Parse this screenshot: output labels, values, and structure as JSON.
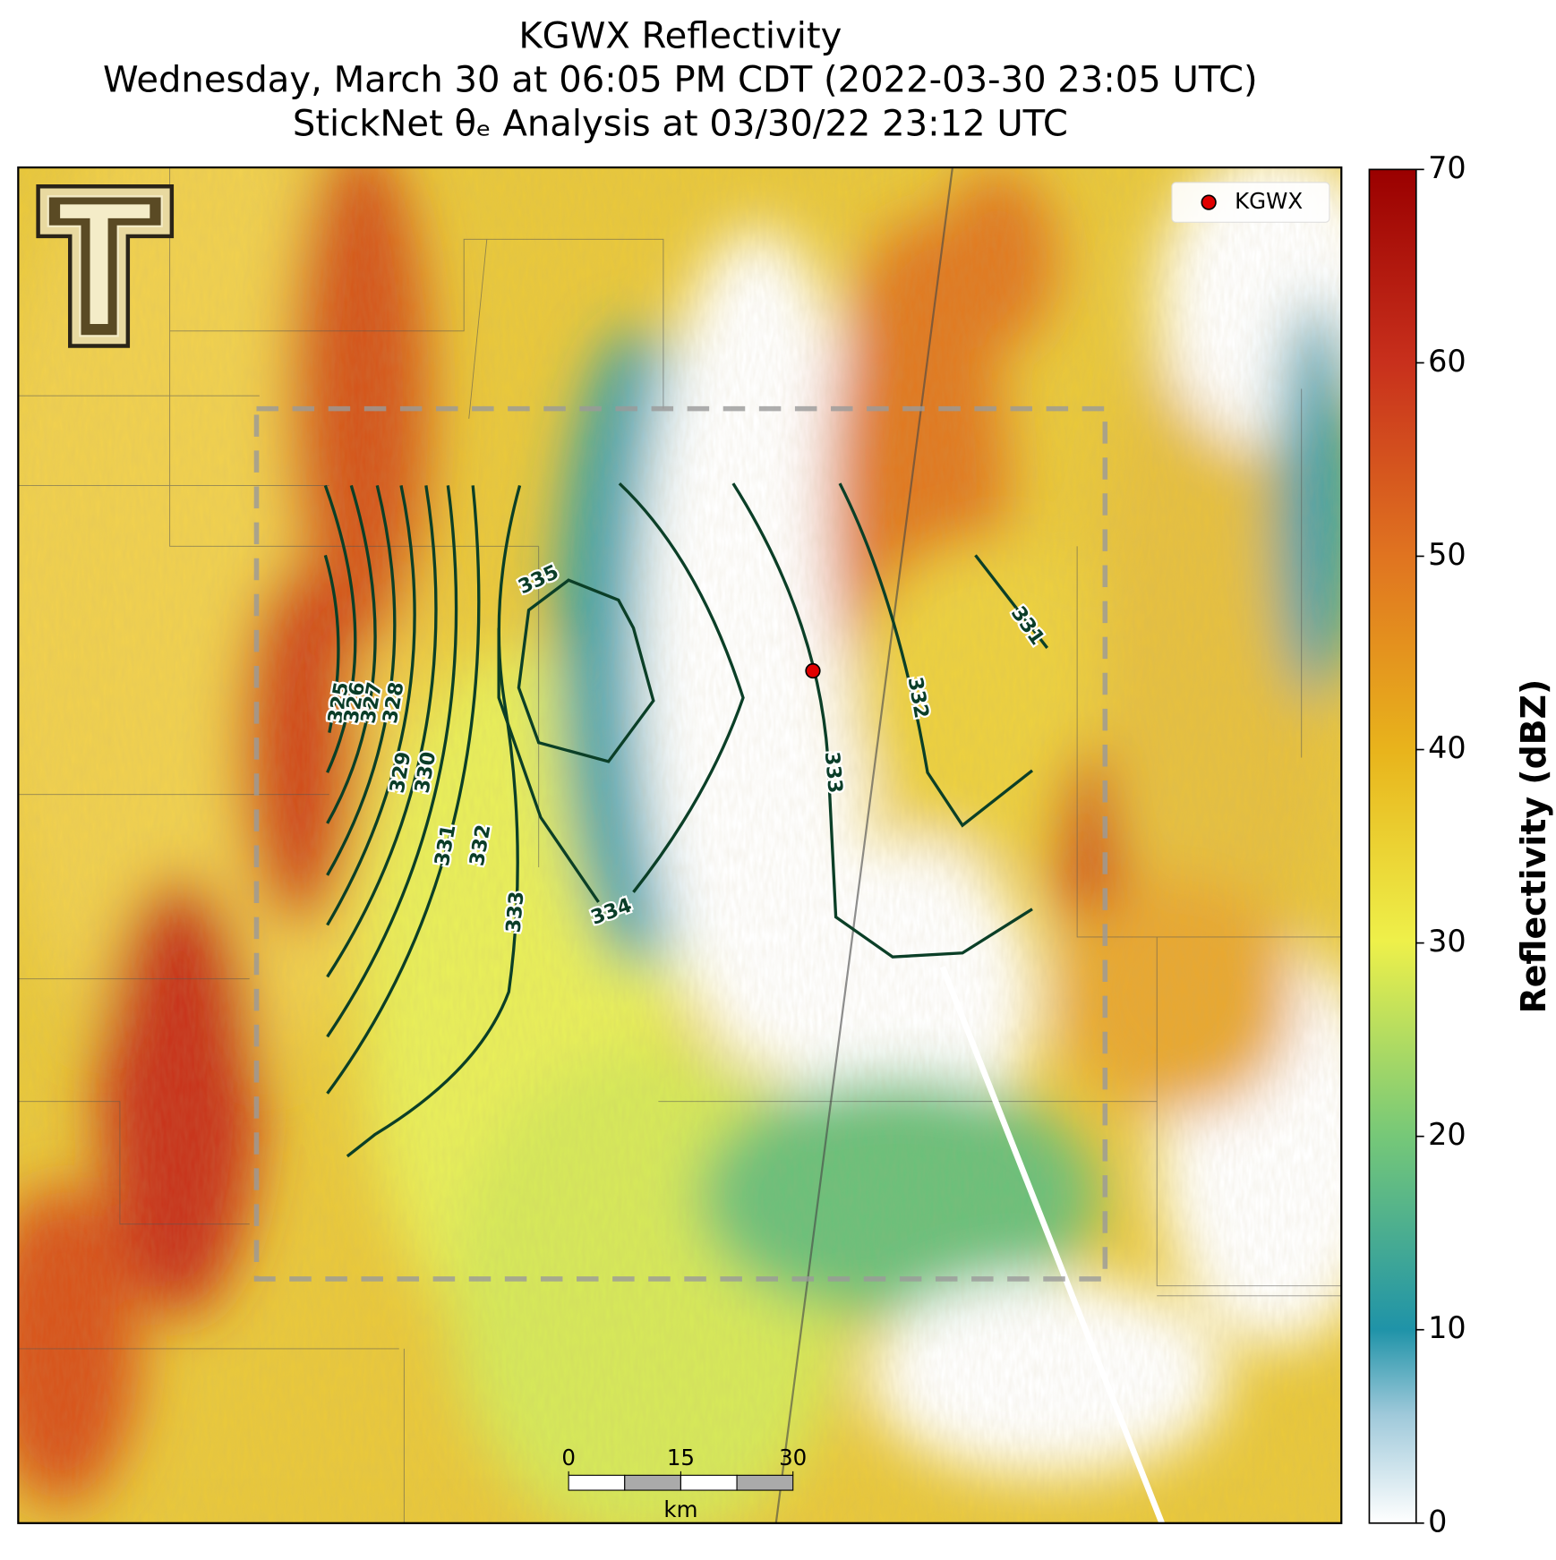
{
  "title": [
    "KGWX Reflectivity",
    "Wednesday, March 30 at 06:05 PM CDT (2022-03-30 23:05 UTC)",
    "StickNet θₑ Analysis at 03/30/22 23:12 UTC"
  ],
  "colorbar": {
    "label": "Reflectivity (dBZ)",
    "lim": [
      0,
      70
    ],
    "ticks": [
      0,
      10,
      20,
      30,
      40,
      50,
      60,
      70
    ]
  },
  "legend": {
    "label": "KGWX"
  },
  "contour_labels": [
    325,
    326,
    327,
    328,
    329,
    330,
    331,
    332,
    333,
    334,
    335,
    331,
    332,
    333
  ],
  "scale_bar": {
    "lim": [
      0,
      30
    ],
    "ticks": [
      0,
      15,
      30
    ],
    "unit": "km"
  }
}
